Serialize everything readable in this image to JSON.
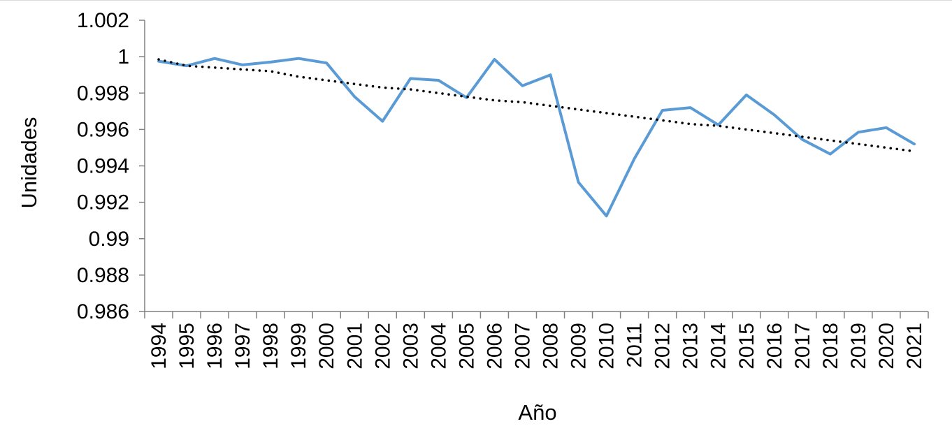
{
  "chart_data": {
    "type": "line",
    "xlabel": "Año",
    "ylabel": "Unidades",
    "ylim": [
      0.986,
      1.002
    ],
    "y_tick_step": 0.002,
    "y_tick_labels": [
      "0.986",
      "0.988",
      "0.99",
      "0.992",
      "0.994",
      "0.996",
      "0.998",
      "1",
      "1.002"
    ],
    "categories": [
      "1994",
      "1995",
      "1996",
      "1997",
      "1998",
      "1999",
      "2000",
      "2001",
      "2002",
      "2003",
      "2004",
      "2005",
      "2006",
      "2007",
      "2008",
      "2009",
      "2010",
      "2011",
      "2012",
      "2013",
      "2014",
      "2015",
      "2016",
      "2017",
      "2018",
      "2019",
      "2020",
      "2021"
    ],
    "series": [
      {
        "values": [
          0.99975,
          0.9995,
          0.9999,
          0.99955,
          0.9997,
          0.9999,
          0.99965,
          0.9978,
          0.99645,
          0.9988,
          0.9987,
          0.99775,
          0.99985,
          0.9984,
          0.999,
          0.9931,
          0.99125,
          0.9944,
          0.99705,
          0.9972,
          0.99625,
          0.9979,
          0.9968,
          0.99545,
          0.99465,
          0.99585,
          0.9961,
          0.9952
        ],
        "color": "#5b9bd5",
        "style": "solid"
      },
      {
        "values": [
          0.99985,
          0.9995,
          0.9994,
          0.9993,
          0.9992,
          0.9989,
          0.9987,
          0.9985,
          0.9983,
          0.9982,
          0.998,
          0.9978,
          0.9976,
          0.9975,
          0.9973,
          0.9971,
          0.9969,
          0.9967,
          0.9965,
          0.9963,
          0.9962,
          0.996,
          0.9958,
          0.9956,
          0.9954,
          0.9952,
          0.995,
          0.9948
        ],
        "color": "#000000",
        "style": "dotted"
      }
    ],
    "grid": false,
    "legend": "none"
  }
}
